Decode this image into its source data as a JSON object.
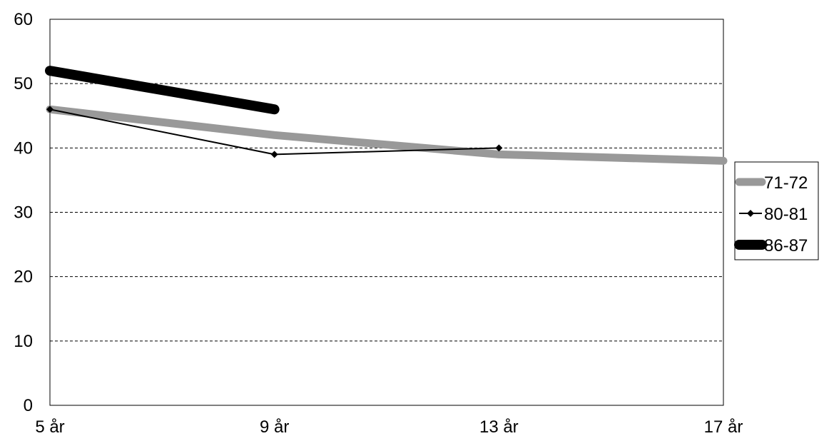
{
  "chart_data": {
    "type": "line",
    "categories": [
      "5 år",
      "9 år",
      "13 år",
      "17 år"
    ],
    "ylim": [
      0,
      60
    ],
    "yticks": [
      "0",
      "10",
      "20",
      "30",
      "40",
      "50",
      "60"
    ],
    "grid": true,
    "legend_position": "right",
    "series": [
      {
        "name": "71-72",
        "values": [
          46,
          42,
          39,
          38
        ],
        "color": "#999999",
        "style": "thick"
      },
      {
        "name": "80-81",
        "values": [
          46,
          39,
          40,
          null
        ],
        "color": "#000000",
        "style": "thin-marker"
      },
      {
        "name": "86-87",
        "values": [
          52,
          46,
          null,
          null
        ],
        "color": "#000000",
        "style": "extra-thick"
      }
    ]
  }
}
